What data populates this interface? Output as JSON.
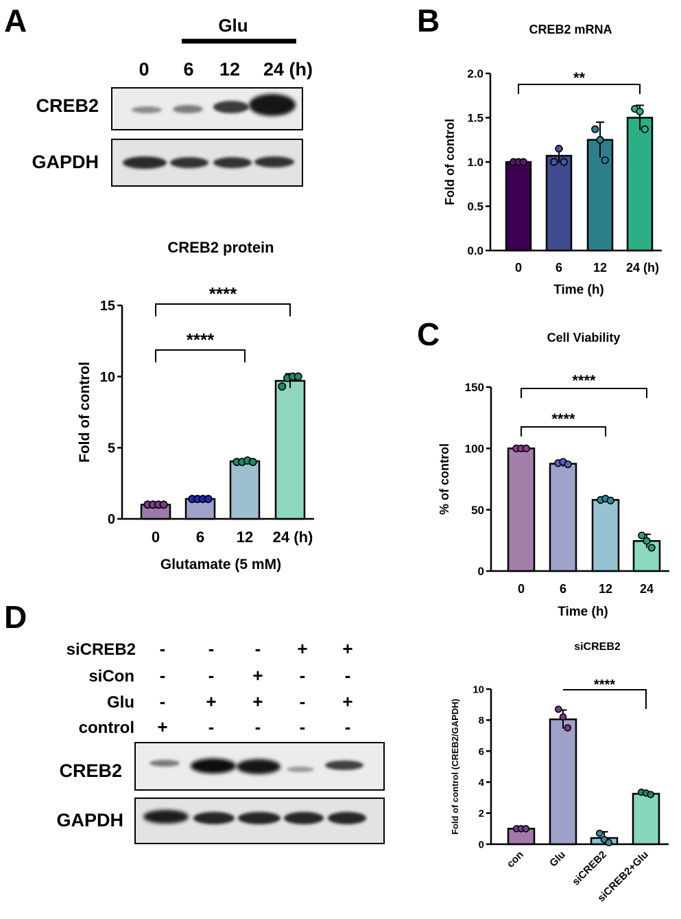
{
  "panel_letters": {
    "A": "A",
    "B": "B",
    "C": "C",
    "D": "D"
  },
  "blot_a": {
    "treatment_label": "Glu",
    "lane_labels": [
      "0",
      "6",
      "12",
      "24 (h)"
    ],
    "row_labels": [
      "CREB2",
      "GAPDH"
    ]
  },
  "blot_d": {
    "condition_rows": [
      {
        "label": "siCREB2",
        "signs": [
          "-",
          "-",
          "-",
          "+",
          "+"
        ]
      },
      {
        "label": "siCon",
        "signs": [
          "-",
          "-",
          "+",
          "-",
          "-"
        ]
      },
      {
        "label": "Glu",
        "signs": [
          "-",
          "+",
          "+",
          "-",
          "+"
        ]
      },
      {
        "label": "control",
        "signs": [
          "+",
          "-",
          "-",
          "-",
          "-"
        ]
      }
    ],
    "row_labels": [
      "CREB2",
      "GAPDH"
    ]
  },
  "colors": {
    "A": [
      "#9e7aa8",
      "#9ea2ca",
      "#9dbfcf",
      "#8fd6c0"
    ],
    "A_dots": [
      "#7d3a8a",
      "#1f25b8",
      "#1c8a66",
      "#1c8a66"
    ],
    "B": [
      "#3d0050",
      "#404a8e",
      "#2d7f8c",
      "#2cae86"
    ],
    "B_dots": [
      "#5a1670",
      "#4a55a3",
      "#2a8494",
      "#2ab384"
    ],
    "C": [
      "#a27ea8",
      "#9fa2ca",
      "#95c3d0",
      "#8ad9c0"
    ],
    "C_dots": [
      "#8a3c95",
      "#5a62c0",
      "#2a8f9c",
      "#2aa07e"
    ],
    "D": [
      "#a379ab",
      "#9ea2c8",
      "#8fc0d0",
      "#86d6bb"
    ],
    "D_dots": [
      "#7d3a8a",
      "#7d3a8a",
      "#3a8c9c",
      "#1c8a66"
    ]
  },
  "chart_data": [
    {
      "id": "A",
      "type": "bar",
      "title": "CREB2 protein",
      "xlabel": "Glutamate (5 mM)",
      "ylabel": "Fold of control",
      "categories": [
        "0",
        "6",
        "12",
        "24 (h)"
      ],
      "values": [
        1.0,
        1.4,
        4.05,
        9.7
      ],
      "errors": [
        0.05,
        0.05,
        0.1,
        0.5
      ],
      "points": [
        [
          1.0,
          1.0,
          1.0,
          1.0
        ],
        [
          1.4,
          1.4,
          1.4,
          1.4
        ],
        [
          4.0,
          4.0,
          4.1,
          4.0
        ],
        [
          9.3,
          9.9,
          10.0,
          10.0
        ]
      ],
      "ylim": [
        0,
        15
      ],
      "yticks": [
        "0",
        "5",
        "10",
        "15"
      ],
      "significance": [
        {
          "from": 0,
          "to": 2,
          "label": "****"
        },
        {
          "from": 0,
          "to": 3,
          "label": "****"
        }
      ]
    },
    {
      "id": "B",
      "type": "bar",
      "title": "CREB2 mRNA",
      "xlabel": "Time (h)",
      "ylabel": "Fold of control",
      "categories": [
        "0",
        "6",
        "12",
        "24 (h)"
      ],
      "values": [
        1.0,
        1.07,
        1.25,
        1.5
      ],
      "errors": [
        0.01,
        0.08,
        0.2,
        0.14
      ],
      "points": [
        [
          1.0,
          1.0,
          1.0
        ],
        [
          1.0,
          1.15,
          1.0
        ],
        [
          1.37,
          1.25,
          1.02
        ],
        [
          1.6,
          1.57,
          1.37
        ]
      ],
      "ylim": [
        0,
        2.0
      ],
      "yticks": [
        "0.0",
        "0.5",
        "1.0",
        "1.5",
        "2.0"
      ],
      "significance": [
        {
          "from": 0,
          "to": 3,
          "label": "**"
        }
      ]
    },
    {
      "id": "C",
      "type": "bar",
      "title": "Cell Viability",
      "xlabel": "Time (h)",
      "ylabel": "% of control",
      "categories": [
        "0",
        "6",
        "12",
        "24"
      ],
      "values": [
        100,
        87.5,
        58,
        24.5
      ],
      "errors": [
        0.5,
        2.5,
        1.5,
        5.5
      ],
      "points": [
        [
          100,
          100,
          100
        ],
        [
          88,
          89,
          87
        ],
        [
          58,
          59,
          57.5
        ],
        [
          29,
          24.5,
          19
        ]
      ],
      "ylim": [
        0,
        150
      ],
      "yticks": [
        "0",
        "50",
        "100",
        "150"
      ],
      "significance": [
        {
          "from": 0,
          "to": 2,
          "label": "****"
        },
        {
          "from": 0,
          "to": 3,
          "label": "****"
        }
      ]
    },
    {
      "id": "D",
      "type": "bar",
      "title": "siCREB2",
      "xlabel": "",
      "ylabel": "Fold of control (CREB2/GAPDH)",
      "categories": [
        "con",
        "Glu",
        "siCREB2",
        "siCREB2+Glu"
      ],
      "values": [
        1.0,
        8.05,
        0.4,
        3.25
      ],
      "errors": [
        0.03,
        0.6,
        0.4,
        0.12
      ],
      "points": [
        [
          1.0,
          1.0,
          1.0
        ],
        [
          8.7,
          8.2,
          7.5
        ],
        [
          0.7,
          0.3,
          0.1
        ],
        [
          3.35,
          3.3,
          3.2
        ]
      ],
      "ylim": [
        0,
        10
      ],
      "yticks": [
        "0",
        "2",
        "4",
        "6",
        "8",
        "10"
      ],
      "significance": [
        {
          "from": 1,
          "to": 3,
          "label": "****"
        }
      ]
    }
  ]
}
